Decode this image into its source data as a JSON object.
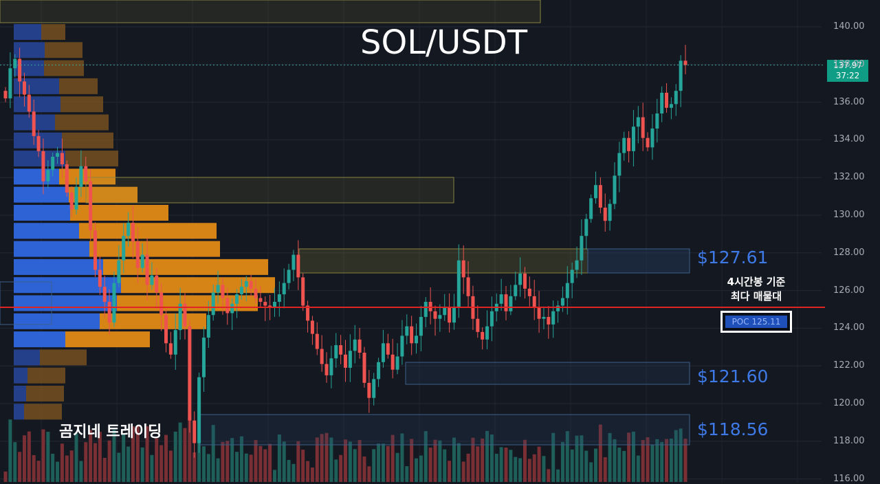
{
  "chart_data": {
    "type": "candlestick",
    "title": "SOL/USDT",
    "ylim": [
      116,
      141
    ],
    "y_ticks": [
      "140.00",
      "138.00",
      "136.00",
      "134.00",
      "132.00",
      "130.00",
      "128.00",
      "126.00",
      "124.00",
      "122.00",
      "120.00",
      "118.00",
      "116.00"
    ],
    "current_price": "137.97",
    "countdown": "37:22",
    "poc": {
      "price": 125.11,
      "label": "POC 125.11",
      "note_line1": "4시간봉 기준",
      "note_line2": "최다 매물대"
    },
    "levels": [
      {
        "price": 127.61,
        "label": "$127.61"
      },
      {
        "price": 121.6,
        "label": "$121.60"
      },
      {
        "price": 118.56,
        "label": "$118.56"
      }
    ],
    "colors": {
      "up": "#26a69a",
      "down": "#ef5350",
      "poc_line": "#e02424",
      "profile_blue": "#2e63d6",
      "profile_orange": "#e08a16",
      "level_text": "#3d7ae8"
    },
    "closes": [
      136.2,
      137.8,
      138.3,
      137.1,
      136.4,
      135.5,
      134.2,
      133.4,
      131.8,
      132.4,
      133.1,
      133.3,
      132.7,
      131.2,
      130.3,
      131.5,
      132.6,
      131.8,
      129.2,
      127.1,
      126.2,
      125.4,
      124.3,
      126.4,
      127.6,
      128.9,
      129.6,
      128.6,
      127.2,
      127.9,
      126.3,
      126.8,
      125.9,
      124.7,
      123.2,
      122.6,
      123.9,
      125.3,
      124.1,
      119.1,
      117.9,
      121.4,
      123.5,
      124.7,
      125.9,
      126.3,
      125.6,
      124.8,
      125.3,
      125.8,
      126.2,
      126.5,
      126.1,
      125.6,
      125.4,
      125.2,
      125.1,
      125.4,
      125.8,
      126.4,
      127.1,
      127.9,
      126.7,
      125.2,
      124.4,
      123.7,
      122.9,
      122.1,
      121.5,
      122.4,
      123.1,
      122.6,
      121.9,
      122.8,
      123.4,
      122.7,
      121.1,
      120.3,
      121.3,
      122.2,
      123.2,
      122.6,
      121.8,
      122.5,
      123.6,
      124.1,
      123.2,
      123.6,
      124.6,
      125.4,
      124.9,
      124.5,
      124.7,
      125.1,
      124.3,
      125.1,
      127.6,
      126.7,
      125.7,
      124.5,
      123.8,
      123.4,
      124.1,
      124.9,
      125.3,
      125.8,
      124.9,
      125.7,
      126.3,
      126.9,
      126.1,
      125.7,
      125.1,
      124.5,
      124.6,
      124.2,
      124.9,
      125.2,
      125.6,
      126.4,
      127.1,
      127.6,
      128.9,
      129.8,
      130.9,
      131.6,
      130.4,
      129.7,
      130.6,
      132.1,
      133.3,
      134.1,
      133.4,
      134.7,
      135.2,
      134.1,
      133.6,
      134.6,
      135.4,
      136.5,
      135.7,
      135.9,
      136.6,
      138.2,
      137.97
    ]
  }
}
